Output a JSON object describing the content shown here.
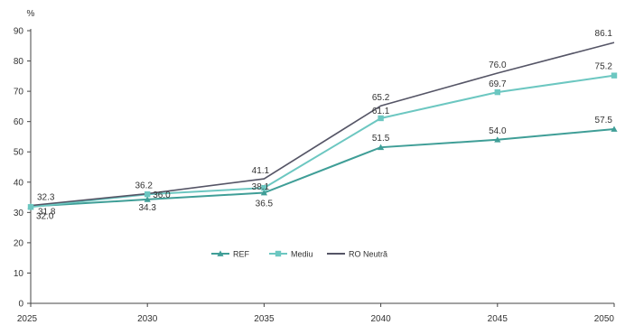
{
  "chart_data": {
    "type": "line",
    "unit": "%",
    "x": [
      "2025",
      "2030",
      "2035",
      "2040",
      "2045",
      "2050"
    ],
    "ylim": [
      0,
      90
    ],
    "yticks": [
      "0",
      "10",
      "20",
      "30",
      "40",
      "50",
      "60",
      "70",
      "80",
      "90"
    ],
    "grid": false,
    "legend_position": "bottom-center",
    "series": [
      {
        "name": "REF",
        "values": [
          32.0,
          34.3,
          36.5,
          51.5,
          54.0,
          57.5
        ],
        "labels": [
          "32.0",
          "34.3",
          "36.5",
          "51.5",
          "54.0",
          "57.5"
        ],
        "color": "#3f9e97",
        "marker": "triangle"
      },
      {
        "name": "Mediu",
        "values": [
          31.8,
          36.0,
          38.1,
          61.1,
          69.7,
          75.2
        ],
        "labels": [
          "31.8",
          "36.0",
          "38.1",
          "61.1",
          "69.7",
          "75.2"
        ],
        "color": "#6cc7c1",
        "marker": "square"
      },
      {
        "name": "RO Neutră",
        "values": [
          32.3,
          36.2,
          41.1,
          65.2,
          76.0,
          86.1
        ],
        "labels": [
          "32.3",
          "36.2",
          "41.1",
          "65.2",
          "76.0",
          "86.1"
        ],
        "color": "#555566",
        "marker": "none"
      }
    ]
  }
}
